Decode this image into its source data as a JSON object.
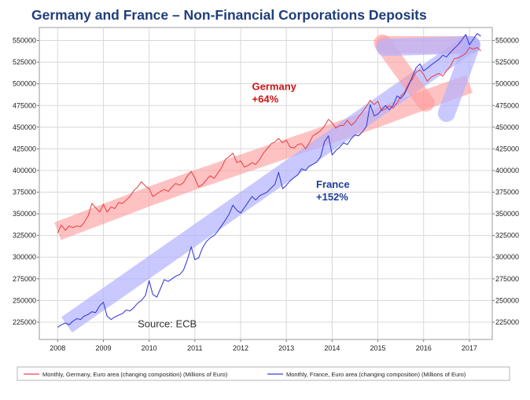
{
  "chart_data": {
    "type": "line",
    "title": "Germany and France – Non-Financial Corporations Deposits",
    "xlabel": "",
    "ylabel": "",
    "xlim": [
      2007.6,
      2017.5
    ],
    "ylim": [
      205000,
      565000
    ],
    "x_ticks": [
      "2008",
      "2009",
      "2010",
      "2011",
      "2012",
      "2013",
      "2014",
      "2015",
      "2016",
      "2017"
    ],
    "y_ticks": [
      "225000",
      "250000",
      "275000",
      "300000",
      "325000",
      "350000",
      "375000",
      "400000",
      "425000",
      "450000",
      "475000",
      "500000",
      "525000",
      "550000"
    ],
    "grid": true,
    "legend_position": "bottom",
    "series": [
      {
        "name": "Monthly, Germany, Euro area (changing composition) (Millions of Euro)",
        "color": "#e8474d",
        "x": [
          2008.0,
          2008.08,
          2008.17,
          2008.25,
          2008.33,
          2008.42,
          2008.5,
          2008.58,
          2008.67,
          2008.75,
          2008.83,
          2008.92,
          2009.0,
          2009.08,
          2009.17,
          2009.25,
          2009.33,
          2009.42,
          2009.5,
          2009.58,
          2009.67,
          2009.75,
          2009.83,
          2009.92,
          2010.0,
          2010.08,
          2010.17,
          2010.25,
          2010.33,
          2010.42,
          2010.5,
          2010.58,
          2010.67,
          2010.75,
          2010.83,
          2010.92,
          2011.0,
          2011.08,
          2011.17,
          2011.25,
          2011.33,
          2011.42,
          2011.5,
          2011.58,
          2011.67,
          2011.75,
          2011.83,
          2011.92,
          2012.0,
          2012.08,
          2012.17,
          2012.25,
          2012.33,
          2012.42,
          2012.5,
          2012.58,
          2012.67,
          2012.75,
          2012.83,
          2012.92,
          2013.0,
          2013.08,
          2013.17,
          2013.25,
          2013.33,
          2013.42,
          2013.5,
          2013.58,
          2013.67,
          2013.75,
          2013.83,
          2013.92,
          2014.0,
          2014.08,
          2014.17,
          2014.25,
          2014.33,
          2014.42,
          2014.5,
          2014.58,
          2014.67,
          2014.75,
          2014.83,
          2014.92,
          2015.0,
          2015.08,
          2015.17,
          2015.25,
          2015.33,
          2015.42,
          2015.5,
          2015.58,
          2015.67,
          2015.75,
          2015.83,
          2015.92,
          2016.0,
          2016.08,
          2016.17,
          2016.25,
          2016.33,
          2016.42,
          2016.5,
          2016.58,
          2016.67,
          2016.75,
          2016.83,
          2016.92,
          2017.0,
          2017.08,
          2017.17,
          2017.25
        ],
        "values": [
          328000,
          337000,
          331000,
          336000,
          334000,
          336000,
          335000,
          340000,
          348000,
          362000,
          357000,
          352000,
          361000,
          352000,
          358000,
          356000,
          363000,
          362000,
          366000,
          370000,
          377000,
          381000,
          387000,
          382000,
          379000,
          370000,
          373000,
          376000,
          378000,
          376000,
          381000,
          385000,
          383000,
          386000,
          393000,
          399000,
          391000,
          381000,
          384000,
          389000,
          394000,
          391000,
          397000,
          403000,
          413000,
          416000,
          420000,
          409000,
          411000,
          404000,
          406000,
          409000,
          407000,
          413000,
          420000,
          425000,
          431000,
          433000,
          437000,
          432000,
          435000,
          427000,
          426000,
          430000,
          431000,
          425000,
          432000,
          440000,
          443000,
          446000,
          451000,
          459000,
          455000,
          449000,
          452000,
          452000,
          458000,
          452000,
          456000,
          462000,
          468000,
          474000,
          481000,
          476000,
          480000,
          469000,
          471000,
          475000,
          472000,
          478000,
          486000,
          490000,
          500000,
          505000,
          513000,
          516000,
          511000,
          503000,
          508000,
          510000,
          512000,
          509000,
          515000,
          520000,
          529000,
          530000,
          532000,
          535000,
          542000,
          540000,
          542000,
          538000
        ]
      },
      {
        "name": "Monthly, France, Euro area (changing composition) (Millions of Euro)",
        "color": "#3b3fd6",
        "x": [
          2008.0,
          2008.08,
          2008.17,
          2008.25,
          2008.33,
          2008.42,
          2008.5,
          2008.58,
          2008.67,
          2008.75,
          2008.83,
          2008.92,
          2009.0,
          2009.08,
          2009.17,
          2009.25,
          2009.33,
          2009.42,
          2009.5,
          2009.58,
          2009.67,
          2009.75,
          2009.83,
          2009.92,
          2010.0,
          2010.08,
          2010.17,
          2010.25,
          2010.33,
          2010.42,
          2010.5,
          2010.58,
          2010.67,
          2010.75,
          2010.83,
          2010.92,
          2011.0,
          2011.08,
          2011.17,
          2011.25,
          2011.33,
          2011.42,
          2011.5,
          2011.58,
          2011.67,
          2011.75,
          2011.83,
          2011.92,
          2012.0,
          2012.08,
          2012.17,
          2012.25,
          2012.33,
          2012.42,
          2012.5,
          2012.58,
          2012.67,
          2012.75,
          2012.83,
          2012.92,
          2013.0,
          2013.08,
          2013.17,
          2013.25,
          2013.33,
          2013.42,
          2013.5,
          2013.58,
          2013.67,
          2013.75,
          2013.83,
          2013.92,
          2014.0,
          2014.08,
          2014.17,
          2014.25,
          2014.33,
          2014.42,
          2014.5,
          2014.58,
          2014.67,
          2014.75,
          2014.83,
          2014.92,
          2015.0,
          2015.08,
          2015.17,
          2015.25,
          2015.33,
          2015.42,
          2015.5,
          2015.58,
          2015.67,
          2015.75,
          2015.83,
          2015.92,
          2016.0,
          2016.08,
          2016.17,
          2016.25,
          2016.33,
          2016.42,
          2016.5,
          2016.58,
          2016.67,
          2016.75,
          2016.83,
          2016.92,
          2017.0,
          2017.08,
          2017.17,
          2017.25
        ],
        "values": [
          219000,
          222000,
          224000,
          222000,
          226000,
          229000,
          228000,
          232000,
          234000,
          237000,
          236000,
          244000,
          248000,
          232000,
          228000,
          231000,
          233000,
          235000,
          239000,
          238000,
          242000,
          247000,
          250000,
          256000,
          273000,
          257000,
          254000,
          264000,
          274000,
          272000,
          275000,
          278000,
          280000,
          285000,
          296000,
          312000,
          297000,
          299000,
          311000,
          318000,
          322000,
          325000,
          330000,
          336000,
          343000,
          350000,
          360000,
          354000,
          351000,
          357000,
          364000,
          370000,
          366000,
          371000,
          373000,
          375000,
          380000,
          384000,
          398000,
          379000,
          383000,
          388000,
          392000,
          395000,
          402000,
          400000,
          405000,
          407000,
          410000,
          416000,
          433000,
          440000,
          418000,
          423000,
          427000,
          432000,
          430000,
          437000,
          441000,
          440000,
          445000,
          451000,
          476000,
          463000,
          465000,
          470000,
          475000,
          470000,
          475000,
          486000,
          483000,
          488000,
          498000,
          508000,
          518000,
          523000,
          515000,
          518000,
          522000,
          525000,
          528000,
          533000,
          531000,
          536000,
          541000,
          545000,
          550000,
          557000,
          545000,
          551000,
          558000,
          555000
        ]
      }
    ],
    "bands": [
      {
        "color": "#ff9999",
        "opacity": 0.6,
        "x": [
          2008.0,
          2009.0,
          2010.0,
          2011.0,
          2012.0,
          2013.0,
          2014.0,
          2015.0,
          2016.0,
          2017.0
        ],
        "values": [
          330000,
          350000,
          370000,
          389000,
          407000,
          425000,
          443000,
          461000,
          481000,
          500000
        ]
      },
      {
        "color": "#b2b2ff",
        "opacity": 0.7,
        "x": [
          2008.2,
          2017.05
        ],
        "values": [
          222000,
          548000
        ]
      }
    ],
    "arrows": [
      {
        "color": "#ff9999",
        "opacity": 0.6,
        "from": [
          2015.1,
          547000
        ],
        "to": [
          2016.05,
          478000
        ]
      },
      {
        "color": "#ff9999",
        "opacity": 0.6,
        "from": [
          2015.15,
          545000
        ],
        "to": [
          2017.05,
          545000
        ]
      },
      {
        "color": "#b2b2ff",
        "opacity": 0.7,
        "from": [
          2016.5,
          466000
        ],
        "to": [
          2017.05,
          545000
        ]
      },
      {
        "color": "#b2b2ff",
        "opacity": 0.7,
        "from": [
          2015.15,
          542000
        ],
        "to": [
          2017.05,
          545000
        ]
      }
    ],
    "annotations": [
      {
        "label_line1": "Germany",
        "label_line2": "+64%",
        "color": "#cc1111",
        "x": 2012.25,
        "y": 493000
      },
      {
        "label_line1": "France",
        "label_line2": "+152%",
        "color": "#1f3d99",
        "x": 2013.65,
        "y": 380000
      }
    ],
    "source_note": {
      "text": "Source: ECB",
      "x": 2009.75,
      "y": 219000
    }
  }
}
